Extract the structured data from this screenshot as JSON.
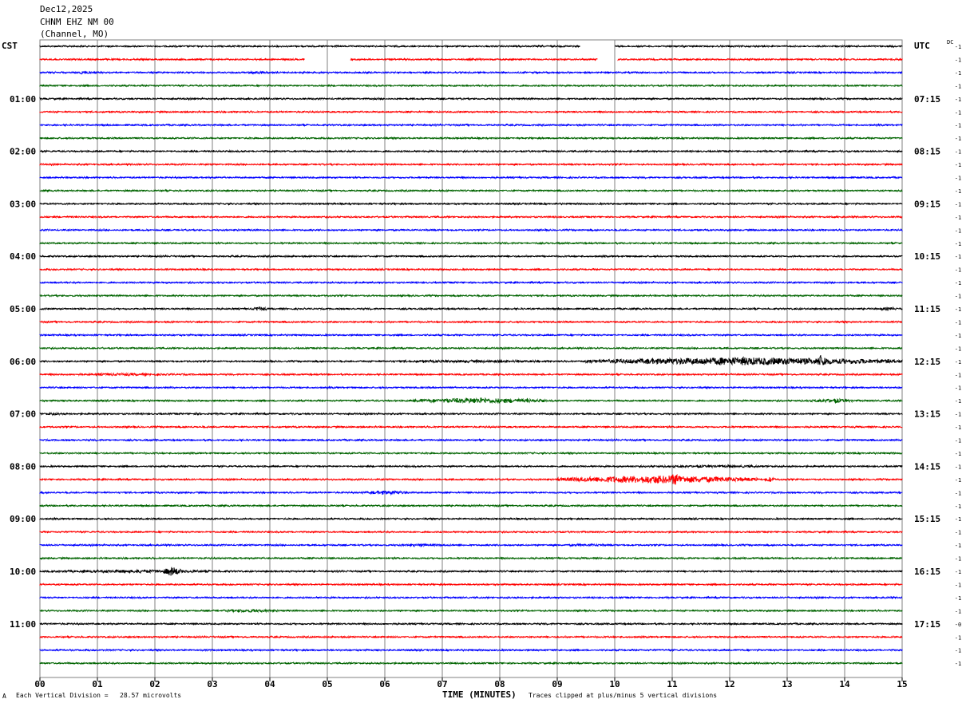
{
  "header": {
    "date": "Dec12,2025",
    "station": "CHNM EHZ NM 00",
    "channel": "(Channel, MO)"
  },
  "left_zone": "CST",
  "right_zone": "UTC",
  "dc_label": "DC",
  "footer": {
    "left_mark": "A",
    "scale": "Each Vertical Division =   28.57 microvolts",
    "xlabel": "TIME (MINUTES)",
    "clip_note": "Traces clipped at plus/minus 5 vertical divisions"
  },
  "colors": {
    "line1": "#000000",
    "line2": "#ff0000",
    "line3": "#0000ff",
    "line4": "#006400",
    "grid": "#808080"
  },
  "chart_data": {
    "type": "line",
    "title": "",
    "xlabel": "TIME (MINUTES)",
    "xlim": [
      0,
      15
    ],
    "x_ticks": [
      "00",
      "01",
      "02",
      "03",
      "04",
      "05",
      "06",
      "07",
      "08",
      "09",
      "10",
      "11",
      "12",
      "13",
      "14",
      "15"
    ],
    "trace_count": 48,
    "trace_interval_minutes": 15,
    "series_color_cycle": [
      "#000000",
      "#ff0000",
      "#0000ff",
      "#006400"
    ],
    "left_time_labels": [
      {
        "trace": 4,
        "label": "01:00"
      },
      {
        "trace": 8,
        "label": "02:00"
      },
      {
        "trace": 12,
        "label": "03:00"
      },
      {
        "trace": 16,
        "label": "04:00"
      },
      {
        "trace": 20,
        "label": "05:00"
      },
      {
        "trace": 24,
        "label": "06:00"
      },
      {
        "trace": 28,
        "label": "07:00"
      },
      {
        "trace": 32,
        "label": "08:00"
      },
      {
        "trace": 36,
        "label": "09:00"
      },
      {
        "trace": 40,
        "label": "10:00"
      },
      {
        "trace": 44,
        "label": "11:00"
      }
    ],
    "right_time_labels": [
      {
        "trace": 4,
        "label": "07:15"
      },
      {
        "trace": 8,
        "label": "08:15"
      },
      {
        "trace": 12,
        "label": "09:15"
      },
      {
        "trace": 16,
        "label": "10:15"
      },
      {
        "trace": 20,
        "label": "11:15"
      },
      {
        "trace": 24,
        "label": "12:15"
      },
      {
        "trace": 28,
        "label": "13:15"
      },
      {
        "trace": 32,
        "label": "14:15"
      },
      {
        "trace": 36,
        "label": "15:15"
      },
      {
        "trace": 40,
        "label": "16:15"
      },
      {
        "trace": 44,
        "label": "17:15"
      }
    ],
    "dc_offsets": [
      "-1",
      "-1",
      "-1",
      "-1",
      "-1",
      "-1",
      "-1",
      "-1",
      "-1",
      "-1",
      "-1",
      "-1",
      "-1",
      "-1",
      "-1",
      "-1",
      "-1",
      "-1",
      "-1",
      "-1",
      "-1",
      "-1",
      "-1",
      "-1",
      "-1",
      "-1",
      "-1",
      "-1",
      "-1",
      "-1",
      "-1",
      "-1",
      "-1",
      "-1",
      "-1",
      "-1",
      "-1",
      "-1",
      "-1",
      "-1",
      "-1",
      "-1",
      "-1",
      "-1",
      "-0",
      "-1",
      "-1",
      "-1"
    ],
    "gaps": [
      {
        "trace": 0,
        "x": [
          9.4,
          10.0
        ]
      },
      {
        "trace": 1,
        "x": [
          4.6,
          5.4
        ]
      },
      {
        "trace": 1,
        "x": [
          9.7,
          10.05
        ]
      }
    ],
    "events": [
      {
        "trace": 2,
        "x": [
          0.6,
          0.9
        ],
        "amp": 2
      },
      {
        "trace": 2,
        "x": [
          3.6,
          3.9
        ],
        "amp": 2
      },
      {
        "trace": 20,
        "x": [
          3.7,
          3.95
        ],
        "amp": 3
      },
      {
        "trace": 20,
        "x": [
          14.6,
          14.9
        ],
        "amp": 2.5
      },
      {
        "trace": 24,
        "x": [
          5.5,
          9.5
        ],
        "amp": 1.5
      },
      {
        "trace": 24,
        "x": [
          9.5,
          15.0
        ],
        "amp": 5
      },
      {
        "trace": 24,
        "x": [
          13.5,
          13.7
        ],
        "amp": 9
      },
      {
        "trace": 25,
        "x": [
          0.0,
          3.0
        ],
        "amp": 1.5
      },
      {
        "trace": 27,
        "x": [
          6.5,
          8.8
        ],
        "amp": 3.5
      },
      {
        "trace": 27,
        "x": [
          13.4,
          14.2
        ],
        "amp": 2.5
      },
      {
        "trace": 28,
        "x": [
          0.0,
          0.5
        ],
        "amp": 1.5
      },
      {
        "trace": 28,
        "x": [
          2.6,
          2.9
        ],
        "amp": 1.5
      },
      {
        "trace": 32,
        "x": [
          10.0,
          13.5
        ],
        "amp": 1.5
      },
      {
        "trace": 33,
        "x": [
          9.0,
          12.5
        ],
        "amp": 5
      },
      {
        "trace": 33,
        "x": [
          10.8,
          11.3
        ],
        "amp": 7
      },
      {
        "trace": 33,
        "x": [
          12.6,
          12.8
        ],
        "amp": 3
      },
      {
        "trace": 34,
        "x": [
          5.6,
          6.5
        ],
        "amp": 2.5
      },
      {
        "trace": 38,
        "x": [
          6.0,
          7.4
        ],
        "amp": 1.5
      },
      {
        "trace": 38,
        "x": [
          9.0,
          10.0
        ],
        "amp": 1.5
      },
      {
        "trace": 40,
        "x": [
          0.0,
          3.5
        ],
        "amp": 2
      },
      {
        "trace": 40,
        "x": [
          2.15,
          2.45
        ],
        "amp": 6
      },
      {
        "trace": 43,
        "x": [
          3.0,
          4.2
        ],
        "amp": 2
      }
    ]
  }
}
